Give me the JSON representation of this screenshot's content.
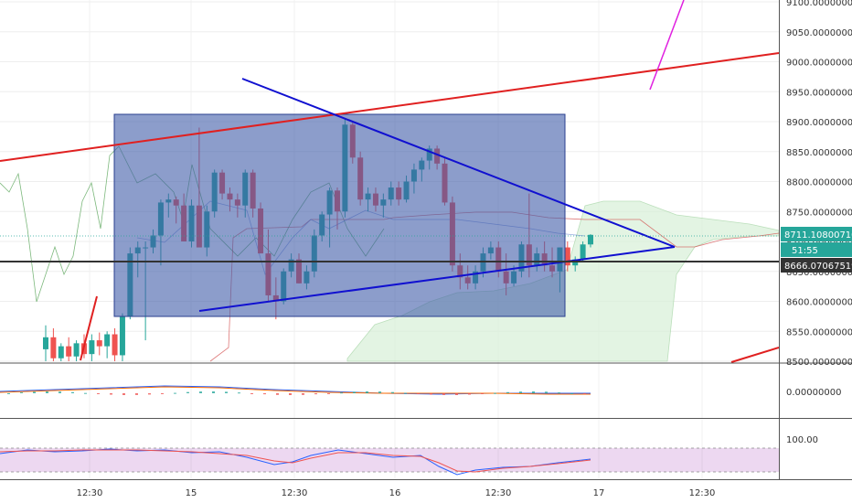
{
  "chart_data": {
    "type": "candlestick",
    "y_axis": {
      "min": 8500,
      "max": 9100,
      "ticks": [
        "9100.00000000",
        "9050.00000000",
        "9000.00000000",
        "8950.00000000",
        "8900.00000000",
        "8850.00000000",
        "8800.00000000",
        "8750.00000000",
        "8700.00000000",
        "8650.00000000",
        "8600.00000000",
        "8550.00000000",
        "8500.00000000"
      ]
    },
    "x_axis": {
      "ticks": [
        "12:30",
        "15",
        "12:30",
        "16",
        "12:30",
        "17",
        "12:30"
      ]
    },
    "price_tags": {
      "last_price": "8711.10800710",
      "countdown": "51:55",
      "horizontal_level": "8666.07067519"
    },
    "candles": [
      {
        "o": 8520,
        "h": 8560,
        "l": 8500,
        "c": 8540
      },
      {
        "o": 8540,
        "h": 8555,
        "l": 8500,
        "c": 8505
      },
      {
        "o": 8505,
        "h": 8530,
        "l": 8500,
        "c": 8525
      },
      {
        "o": 8525,
        "h": 8540,
        "l": 8500,
        "c": 8508
      },
      {
        "o": 8508,
        "h": 8535,
        "l": 8500,
        "c": 8530
      },
      {
        "o": 8530,
        "h": 8545,
        "l": 8505,
        "c": 8512
      },
      {
        "o": 8512,
        "h": 8545,
        "l": 8500,
        "c": 8535
      },
      {
        "o": 8535,
        "h": 8548,
        "l": 8510,
        "c": 8525
      },
      {
        "o": 8525,
        "h": 8550,
        "l": 8505,
        "c": 8545
      },
      {
        "o": 8545,
        "h": 8555,
        "l": 8500,
        "c": 8510
      },
      {
        "o": 8510,
        "h": 8580,
        "l": 8500,
        "c": 8575
      },
      {
        "o": 8575,
        "h": 8690,
        "l": 8570,
        "c": 8680
      },
      {
        "o": 8680,
        "h": 8700,
        "l": 8640,
        "c": 8690
      },
      {
        "o": 8690,
        "h": 8700,
        "l": 8535,
        "c": 8690
      },
      {
        "o": 8690,
        "h": 8720,
        "l": 8680,
        "c": 8710
      },
      {
        "o": 8710,
        "h": 8770,
        "l": 8660,
        "c": 8765
      },
      {
        "o": 8765,
        "h": 8780,
        "l": 8740,
        "c": 8770
      },
      {
        "o": 8770,
        "h": 8775,
        "l": 8730,
        "c": 8760
      },
      {
        "o": 8760,
        "h": 8780,
        "l": 8700,
        "c": 8700
      },
      {
        "o": 8700,
        "h": 8770,
        "l": 8690,
        "c": 8760
      },
      {
        "o": 8760,
        "h": 8890,
        "l": 8690,
        "c": 8690
      },
      {
        "o": 8690,
        "h": 8760,
        "l": 8675,
        "c": 8750
      },
      {
        "o": 8750,
        "h": 8820,
        "l": 8740,
        "c": 8815
      },
      {
        "o": 8815,
        "h": 8820,
        "l": 8770,
        "c": 8780
      },
      {
        "o": 8780,
        "h": 8790,
        "l": 8750,
        "c": 8770
      },
      {
        "o": 8770,
        "h": 8780,
        "l": 8740,
        "c": 8760
      },
      {
        "o": 8760,
        "h": 8820,
        "l": 8740,
        "c": 8815
      },
      {
        "o": 8815,
        "h": 8820,
        "l": 8740,
        "c": 8755
      },
      {
        "o": 8755,
        "h": 8765,
        "l": 8680,
        "c": 8680
      },
      {
        "o": 8680,
        "h": 8720,
        "l": 8600,
        "c": 8610
      },
      {
        "o": 8610,
        "h": 8640,
        "l": 8570,
        "c": 8600
      },
      {
        "o": 8600,
        "h": 8655,
        "l": 8595,
        "c": 8650
      },
      {
        "o": 8650,
        "h": 8680,
        "l": 8640,
        "c": 8670
      },
      {
        "o": 8670,
        "h": 8680,
        "l": 8630,
        "c": 8630
      },
      {
        "o": 8630,
        "h": 8660,
        "l": 8620,
        "c": 8650
      },
      {
        "o": 8650,
        "h": 8720,
        "l": 8640,
        "c": 8710
      },
      {
        "o": 8710,
        "h": 8750,
        "l": 8700,
        "c": 8745
      },
      {
        "o": 8745,
        "h": 8790,
        "l": 8690,
        "c": 8785
      },
      {
        "o": 8785,
        "h": 8790,
        "l": 8720,
        "c": 8750
      },
      {
        "o": 8750,
        "h": 8905,
        "l": 8740,
        "c": 8895
      },
      {
        "o": 8895,
        "h": 8900,
        "l": 8830,
        "c": 8840
      },
      {
        "o": 8840,
        "h": 8850,
        "l": 8760,
        "c": 8770
      },
      {
        "o": 8770,
        "h": 8790,
        "l": 8750,
        "c": 8780
      },
      {
        "o": 8780,
        "h": 8790,
        "l": 8750,
        "c": 8760
      },
      {
        "o": 8760,
        "h": 8780,
        "l": 8740,
        "c": 8770
      },
      {
        "o": 8770,
        "h": 8800,
        "l": 8760,
        "c": 8790
      },
      {
        "o": 8790,
        "h": 8800,
        "l": 8760,
        "c": 8770
      },
      {
        "o": 8770,
        "h": 8810,
        "l": 8765,
        "c": 8800
      },
      {
        "o": 8800,
        "h": 8830,
        "l": 8780,
        "c": 8820
      },
      {
        "o": 8820,
        "h": 8840,
        "l": 8800,
        "c": 8835
      },
      {
        "o": 8835,
        "h": 8860,
        "l": 8820,
        "c": 8855
      },
      {
        "o": 8855,
        "h": 8860,
        "l": 8820,
        "c": 8830
      },
      {
        "o": 8830,
        "h": 8840,
        "l": 8760,
        "c": 8765
      },
      {
        "o": 8765,
        "h": 8775,
        "l": 8650,
        "c": 8660
      },
      {
        "o": 8660,
        "h": 8680,
        "l": 8620,
        "c": 8640
      },
      {
        "o": 8640,
        "h": 8660,
        "l": 8620,
        "c": 8630
      },
      {
        "o": 8630,
        "h": 8660,
        "l": 8620,
        "c": 8650
      },
      {
        "o": 8650,
        "h": 8690,
        "l": 8640,
        "c": 8680
      },
      {
        "o": 8680,
        "h": 8700,
        "l": 8670,
        "c": 8690
      },
      {
        "o": 8690,
        "h": 8700,
        "l": 8640,
        "c": 8650
      },
      {
        "o": 8650,
        "h": 8680,
        "l": 8610,
        "c": 8630
      },
      {
        "o": 8630,
        "h": 8660,
        "l": 8625,
        "c": 8650
      },
      {
        "o": 8650,
        "h": 8700,
        "l": 8640,
        "c": 8695
      },
      {
        "o": 8695,
        "h": 8780,
        "l": 8640,
        "c": 8660
      },
      {
        "o": 8660,
        "h": 8690,
        "l": 8650,
        "c": 8680
      },
      {
        "o": 8680,
        "h": 8700,
        "l": 8650,
        "c": 8660
      },
      {
        "o": 8660,
        "h": 8690,
        "l": 8640,
        "c": 8650
      },
      {
        "o": 8650,
        "h": 8690,
        "l": 8615,
        "c": 8690
      },
      {
        "o": 8690,
        "h": 8700,
        "l": 8650,
        "c": 8660
      },
      {
        "o": 8660,
        "h": 8675,
        "l": 8650,
        "c": 8670
      },
      {
        "o": 8670,
        "h": 8700,
        "l": 8665,
        "c": 8695
      },
      {
        "o": 8695,
        "h": 8712,
        "l": 8690,
        "c": 8711
      }
    ],
    "colors": {
      "up": "#26a69a",
      "down": "#ef5350",
      "rectangle": "#3f5ba9",
      "trendline": "#1010d0",
      "channel": "#e02020",
      "cloud": "#d8f0d8"
    }
  }
}
